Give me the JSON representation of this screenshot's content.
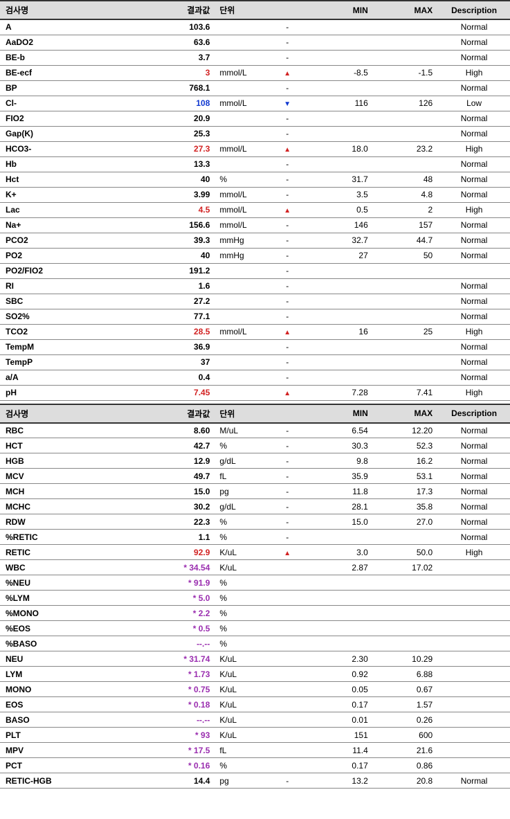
{
  "headers": {
    "name": "검사명",
    "value": "결과값",
    "unit": "단위",
    "flag": "",
    "min": "MIN",
    "max": "MAX",
    "desc": "Description"
  },
  "colors": {
    "normal": "#000000",
    "high": "#d22222",
    "low": "#1038d0",
    "asterisk": "#9a2daf",
    "header_bg": "#dddddd",
    "row_border": "#888888",
    "header_border": "#333333"
  },
  "flag_glyphs": {
    "up": "▲",
    "down": "▼",
    "dash": "-"
  },
  "tables": [
    {
      "rows": [
        {
          "name": "A",
          "value": "103.6",
          "vclass": "val-normal",
          "unit": "",
          "flag": "dash",
          "min": "",
          "max": "",
          "desc": "Normal"
        },
        {
          "name": "AaDO2",
          "value": "63.6",
          "vclass": "val-normal",
          "unit": "",
          "flag": "dash",
          "min": "",
          "max": "",
          "desc": "Normal"
        },
        {
          "name": "BE-b",
          "value": "3.7",
          "vclass": "val-normal",
          "unit": "",
          "flag": "dash",
          "min": "",
          "max": "",
          "desc": "Normal"
        },
        {
          "name": "BE-ecf",
          "value": "3",
          "vclass": "val-high",
          "unit": "mmol/L",
          "flag": "up",
          "min": "-8.5",
          "max": "-1.5",
          "desc": "High"
        },
        {
          "name": "BP",
          "value": "768.1",
          "vclass": "val-normal",
          "unit": "",
          "flag": "dash",
          "min": "",
          "max": "",
          "desc": "Normal"
        },
        {
          "name": "Cl-",
          "value": "108",
          "vclass": "val-low",
          "unit": "mmol/L",
          "flag": "down",
          "min": "116",
          "max": "126",
          "desc": "Low"
        },
        {
          "name": "FIO2",
          "value": "20.9",
          "vclass": "val-normal",
          "unit": "",
          "flag": "dash",
          "min": "",
          "max": "",
          "desc": "Normal"
        },
        {
          "name": "Gap(K)",
          "value": "25.3",
          "vclass": "val-normal",
          "unit": "",
          "flag": "dash",
          "min": "",
          "max": "",
          "desc": "Normal"
        },
        {
          "name": "HCO3-",
          "value": "27.3",
          "vclass": "val-high",
          "unit": "mmol/L",
          "flag": "up",
          "min": "18.0",
          "max": "23.2",
          "desc": "High"
        },
        {
          "name": "Hb",
          "value": "13.3",
          "vclass": "val-normal",
          "unit": "",
          "flag": "dash",
          "min": "",
          "max": "",
          "desc": "Normal"
        },
        {
          "name": "Hct",
          "value": "40",
          "vclass": "val-normal",
          "unit": "%",
          "flag": "dash",
          "min": "31.7",
          "max": "48",
          "desc": "Normal"
        },
        {
          "name": "K+",
          "value": "3.99",
          "vclass": "val-normal",
          "unit": "mmol/L",
          "flag": "dash",
          "min": "3.5",
          "max": "4.8",
          "desc": "Normal"
        },
        {
          "name": "Lac",
          "value": "4.5",
          "vclass": "val-high",
          "unit": "mmol/L",
          "flag": "up",
          "min": "0.5",
          "max": "2",
          "desc": "High"
        },
        {
          "name": "Na+",
          "value": "156.6",
          "vclass": "val-normal",
          "unit": "mmol/L",
          "flag": "dash",
          "min": "146",
          "max": "157",
          "desc": "Normal"
        },
        {
          "name": "PCO2",
          "value": "39.3",
          "vclass": "val-normal",
          "unit": "mmHg",
          "flag": "dash",
          "min": "32.7",
          "max": "44.7",
          "desc": "Normal"
        },
        {
          "name": "PO2",
          "value": "40",
          "vclass": "val-normal",
          "unit": "mmHg",
          "flag": "dash",
          "min": "27",
          "max": "50",
          "desc": "Normal"
        },
        {
          "name": "PO2/FIO2",
          "value": "191.2",
          "vclass": "val-normal",
          "unit": "",
          "flag": "dash",
          "min": "",
          "max": "",
          "desc": ""
        },
        {
          "name": "RI",
          "value": "1.6",
          "vclass": "val-normal",
          "unit": "",
          "flag": "dash",
          "min": "",
          "max": "",
          "desc": "Normal"
        },
        {
          "name": "SBC",
          "value": "27.2",
          "vclass": "val-normal",
          "unit": "",
          "flag": "dash",
          "min": "",
          "max": "",
          "desc": "Normal"
        },
        {
          "name": "SO2%",
          "value": "77.1",
          "vclass": "val-normal",
          "unit": "",
          "flag": "dash",
          "min": "",
          "max": "",
          "desc": "Normal"
        },
        {
          "name": "TCO2",
          "value": "28.5",
          "vclass": "val-high",
          "unit": "mmol/L",
          "flag": "up",
          "min": "16",
          "max": "25",
          "desc": "High"
        },
        {
          "name": "TempM",
          "value": "36.9",
          "vclass": "val-normal",
          "unit": "",
          "flag": "dash",
          "min": "",
          "max": "",
          "desc": "Normal"
        },
        {
          "name": "TempP",
          "value": "37",
          "vclass": "val-normal",
          "unit": "",
          "flag": "dash",
          "min": "",
          "max": "",
          "desc": "Normal"
        },
        {
          "name": "a/A",
          "value": "0.4",
          "vclass": "val-normal",
          "unit": "",
          "flag": "dash",
          "min": "",
          "max": "",
          "desc": "Normal"
        },
        {
          "name": "pH",
          "value": "7.45",
          "vclass": "val-high",
          "unit": "",
          "flag": "up",
          "min": "7.28",
          "max": "7.41",
          "desc": "High"
        }
      ]
    },
    {
      "rows": [
        {
          "name": "RBC",
          "value": "8.60",
          "vclass": "val-normal",
          "unit": "M/uL",
          "flag": "dash",
          "min": "6.54",
          "max": "12.20",
          "desc": "Normal"
        },
        {
          "name": "HCT",
          "value": "42.7",
          "vclass": "val-normal",
          "unit": "%",
          "flag": "dash",
          "min": "30.3",
          "max": "52.3",
          "desc": "Normal"
        },
        {
          "name": "HGB",
          "value": "12.9",
          "vclass": "val-normal",
          "unit": "g/dL",
          "flag": "dash",
          "min": "9.8",
          "max": "16.2",
          "desc": "Normal"
        },
        {
          "name": "MCV",
          "value": "49.7",
          "vclass": "val-normal",
          "unit": "fL",
          "flag": "dash",
          "min": "35.9",
          "max": "53.1",
          "desc": "Normal"
        },
        {
          "name": "MCH",
          "value": "15.0",
          "vclass": "val-normal",
          "unit": "pg",
          "flag": "dash",
          "min": "11.8",
          "max": "17.3",
          "desc": "Normal"
        },
        {
          "name": "MCHC",
          "value": "30.2",
          "vclass": "val-normal",
          "unit": "g/dL",
          "flag": "dash",
          "min": "28.1",
          "max": "35.8",
          "desc": "Normal"
        },
        {
          "name": "RDW",
          "value": "22.3",
          "vclass": "val-normal",
          "unit": "%",
          "flag": "dash",
          "min": "15.0",
          "max": "27.0",
          "desc": "Normal"
        },
        {
          "name": "%RETIC",
          "value": "1.1",
          "vclass": "val-normal",
          "unit": "%",
          "flag": "dash",
          "min": "",
          "max": "",
          "desc": "Normal"
        },
        {
          "name": "RETIC",
          "value": "92.9",
          "vclass": "val-high",
          "unit": "K/uL",
          "flag": "up",
          "min": "3.0",
          "max": "50.0",
          "desc": "High"
        },
        {
          "name": "WBC",
          "value": "* 34.54",
          "vclass": "val-ast",
          "unit": "K/uL",
          "flag": "",
          "min": "2.87",
          "max": "17.02",
          "desc": ""
        },
        {
          "name": "%NEU",
          "value": "* 91.9",
          "vclass": "val-ast",
          "unit": "%",
          "flag": "",
          "min": "",
          "max": "",
          "desc": ""
        },
        {
          "name": "%LYM",
          "value": "* 5.0",
          "vclass": "val-ast",
          "unit": "%",
          "flag": "",
          "min": "",
          "max": "",
          "desc": ""
        },
        {
          "name": "%MONO",
          "value": "* 2.2",
          "vclass": "val-ast",
          "unit": "%",
          "flag": "",
          "min": "",
          "max": "",
          "desc": ""
        },
        {
          "name": "%EOS",
          "value": "* 0.5",
          "vclass": "val-ast",
          "unit": "%",
          "flag": "",
          "min": "",
          "max": "",
          "desc": ""
        },
        {
          "name": "%BASO",
          "value": "--.--",
          "vclass": "val-ast",
          "unit": "%",
          "flag": "",
          "min": "",
          "max": "",
          "desc": ""
        },
        {
          "name": "NEU",
          "value": "* 31.74",
          "vclass": "val-ast",
          "unit": "K/uL",
          "flag": "",
          "min": "2.30",
          "max": "10.29",
          "desc": ""
        },
        {
          "name": "LYM",
          "value": "* 1.73",
          "vclass": "val-ast",
          "unit": "K/uL",
          "flag": "",
          "min": "0.92",
          "max": "6.88",
          "desc": ""
        },
        {
          "name": "MONO",
          "value": "* 0.75",
          "vclass": "val-ast",
          "unit": "K/uL",
          "flag": "",
          "min": "0.05",
          "max": "0.67",
          "desc": ""
        },
        {
          "name": "EOS",
          "value": "* 0.18",
          "vclass": "val-ast",
          "unit": "K/uL",
          "flag": "",
          "min": "0.17",
          "max": "1.57",
          "desc": ""
        },
        {
          "name": "BASO",
          "value": "--.--",
          "vclass": "val-ast",
          "unit": "K/uL",
          "flag": "",
          "min": "0.01",
          "max": "0.26",
          "desc": ""
        },
        {
          "name": "PLT",
          "value": "* 93",
          "vclass": "val-ast",
          "unit": "K/uL",
          "flag": "",
          "min": "151",
          "max": "600",
          "desc": ""
        },
        {
          "name": "MPV",
          "value": "* 17.5",
          "vclass": "val-ast",
          "unit": "fL",
          "flag": "",
          "min": "11.4",
          "max": "21.6",
          "desc": ""
        },
        {
          "name": "PCT",
          "value": "* 0.16",
          "vclass": "val-ast",
          "unit": "%",
          "flag": "",
          "min": "0.17",
          "max": "0.86",
          "desc": ""
        },
        {
          "name": "RETIC-HGB",
          "value": "14.4",
          "vclass": "val-normal",
          "unit": "pg",
          "flag": "dash",
          "min": "13.2",
          "max": "20.8",
          "desc": "Normal"
        }
      ]
    }
  ]
}
